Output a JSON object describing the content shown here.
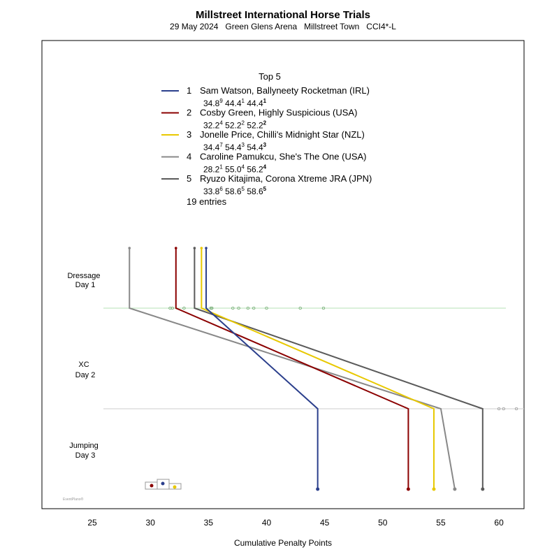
{
  "chart_data": {
    "type": "line",
    "title": "Millstreet International Horse Trials",
    "subtitle": "29 May 2024   Green Glens Arena   Millstreet Town   CCI4*-L",
    "xlabel": "Cumulative Penalty Points",
    "xlim": [
      21,
      62
    ],
    "xticks": [
      25,
      30,
      35,
      40,
      45,
      50,
      55,
      60
    ],
    "phases": [
      "Dressage\nDay 1",
      "XC\nDay 2",
      "Jumping\nDay 3"
    ],
    "legend_title": "Top 5",
    "entries_label": "19 entries",
    "series": [
      {
        "rank": "1",
        "name": "Sam Watson,  Ballyneety Rocketman  (IRL)",
        "color": "#2b3f8c",
        "values": [
          34.8,
          44.4,
          44.4
        ],
        "ranks": [
          "9",
          "1",
          "1"
        ]
      },
      {
        "rank": "2",
        "name": "Cosby Green,  Highly Suspicious  (USA)",
        "color": "#8b0000",
        "values": [
          32.2,
          52.2,
          52.2
        ],
        "ranks": [
          "4",
          "2",
          "2"
        ]
      },
      {
        "rank": "3",
        "name": "Jonelle Price,  Chilli's Midnight Star  (NZL)",
        "color": "#e8c800",
        "values": [
          34.4,
          54.4,
          54.4
        ],
        "ranks": [
          "7",
          "3",
          "3"
        ]
      },
      {
        "rank": "4",
        "name": "Caroline Pamukcu,  She's The One  (USA)",
        "color": "#888888",
        "values": [
          28.2,
          55.0,
          56.2
        ],
        "ranks": [
          "1",
          "4",
          "4"
        ]
      },
      {
        "rank": "5",
        "name": "Ryuzo Kitajima,  Corona Xtreme JRA  (JPN)",
        "color": "#5a5a5a",
        "values": [
          33.8,
          58.6,
          58.6
        ],
        "ranks": [
          "6",
          "5",
          "5"
        ]
      }
    ],
    "other_dressage": [
      31.7,
      31.9,
      32.9,
      35.2,
      35.3,
      37.1,
      37.6,
      38.4,
      38.9,
      40.0,
      42.9,
      44.9
    ],
    "other_xc": [
      60.0,
      60.4,
      61.5
    ],
    "watermark": "EventPlano"
  }
}
